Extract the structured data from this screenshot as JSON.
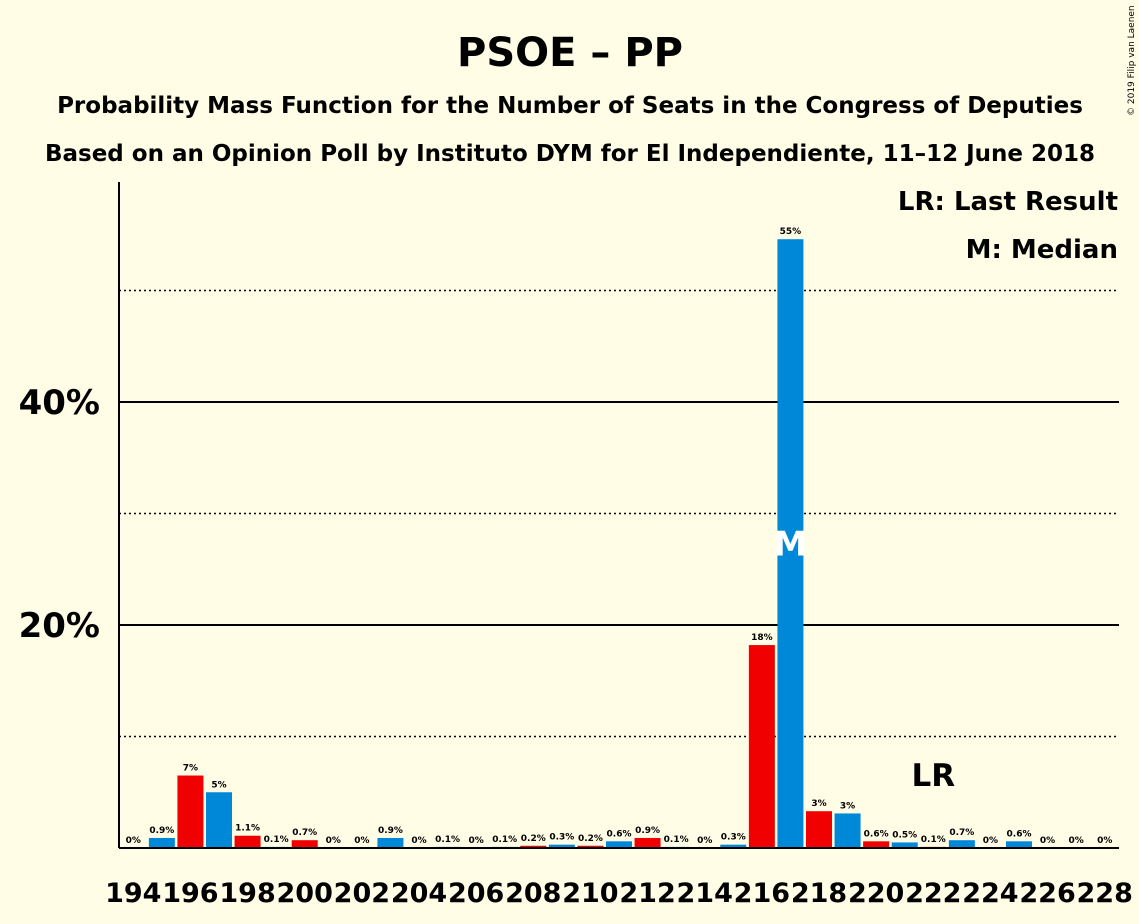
{
  "chart_data": {
    "type": "bar",
    "title": "PSOE – PP",
    "subtitle1": "Probability Mass Function for the Number of Seats in the Congress of Deputies",
    "subtitle2": "Based on an Opinion Poll by Instituto DYM for El Independiente, 11–12 June 2018",
    "copyright": "© 2019 Filip van Laenen",
    "legend": {
      "last_result": "LR: Last Result",
      "median": "M: Median",
      "placement": "top-right"
    },
    "ylim": [
      0,
      60
    ],
    "yticks": [
      {
        "value": 20,
        "label": "20%"
      },
      {
        "value": 40,
        "label": "40%"
      }
    ],
    "solid_gridlines": [
      20,
      40
    ],
    "dotted_gridlines": [
      10,
      30,
      50
    ],
    "x_tick_labels": [
      "194",
      "196",
      "198",
      "200",
      "202",
      "204",
      "206",
      "208",
      "210",
      "212",
      "214",
      "216",
      "218",
      "220",
      "222",
      "224",
      "226",
      "228"
    ],
    "colors": {
      "odd_seat": "#0088D8",
      "even_seat": "#F00000",
      "background": "#FFFDE6",
      "median_text": "#FFFFFF"
    },
    "last_result": {
      "seats": 222,
      "label": "LR"
    },
    "median": {
      "seats": 217,
      "label": "M"
    },
    "bars": [
      {
        "seats": 194,
        "value": 0,
        "label": "0%"
      },
      {
        "seats": 195,
        "value": 0.9,
        "label": "0.9%"
      },
      {
        "seats": 196,
        "value": 6.5,
        "label": "7%"
      },
      {
        "seats": 197,
        "value": 5.0,
        "label": "5%"
      },
      {
        "seats": 198,
        "value": 1.1,
        "label": "1.1%"
      },
      {
        "seats": 199,
        "value": 0.1,
        "label": "0.1%"
      },
      {
        "seats": 200,
        "value": 0.7,
        "label": "0.7%"
      },
      {
        "seats": 201,
        "value": 0,
        "label": "0%"
      },
      {
        "seats": 202,
        "value": 0,
        "label": "0%"
      },
      {
        "seats": 203,
        "value": 0.9,
        "label": "0.9%"
      },
      {
        "seats": 204,
        "value": 0,
        "label": "0%"
      },
      {
        "seats": 205,
        "value": 0.1,
        "label": "0.1%"
      },
      {
        "seats": 206,
        "value": 0,
        "label": "0%"
      },
      {
        "seats": 207,
        "value": 0.1,
        "label": "0.1%"
      },
      {
        "seats": 208,
        "value": 0.2,
        "label": "0.2%"
      },
      {
        "seats": 209,
        "value": 0.3,
        "label": "0.3%"
      },
      {
        "seats": 210,
        "value": 0.2,
        "label": "0.2%"
      },
      {
        "seats": 211,
        "value": 0.6,
        "label": "0.6%"
      },
      {
        "seats": 212,
        "value": 0.9,
        "label": "0.9%"
      },
      {
        "seats": 213,
        "value": 0.1,
        "label": "0.1%"
      },
      {
        "seats": 214,
        "value": 0,
        "label": "0%"
      },
      {
        "seats": 215,
        "value": 0.3,
        "label": "0.3%"
      },
      {
        "seats": 216,
        "value": 18.2,
        "label": "18%"
      },
      {
        "seats": 217,
        "value": 54.6,
        "label": "55%"
      },
      {
        "seats": 218,
        "value": 3.3,
        "label": "3%"
      },
      {
        "seats": 219,
        "value": 3.1,
        "label": "3%"
      },
      {
        "seats": 220,
        "value": 0.6,
        "label": "0.6%"
      },
      {
        "seats": 221,
        "value": 0.5,
        "label": "0.5%"
      },
      {
        "seats": 222,
        "value": 0.1,
        "label": "0.1%"
      },
      {
        "seats": 223,
        "value": 0.7,
        "label": "0.7%"
      },
      {
        "seats": 224,
        "value": 0,
        "label": "0%"
      },
      {
        "seats": 225,
        "value": 0.6,
        "label": "0.6%"
      },
      {
        "seats": 226,
        "value": 0,
        "label": "0%"
      },
      {
        "seats": 227,
        "value": 0,
        "label": "0%"
      },
      {
        "seats": 228,
        "value": 0,
        "label": "0%"
      }
    ]
  }
}
